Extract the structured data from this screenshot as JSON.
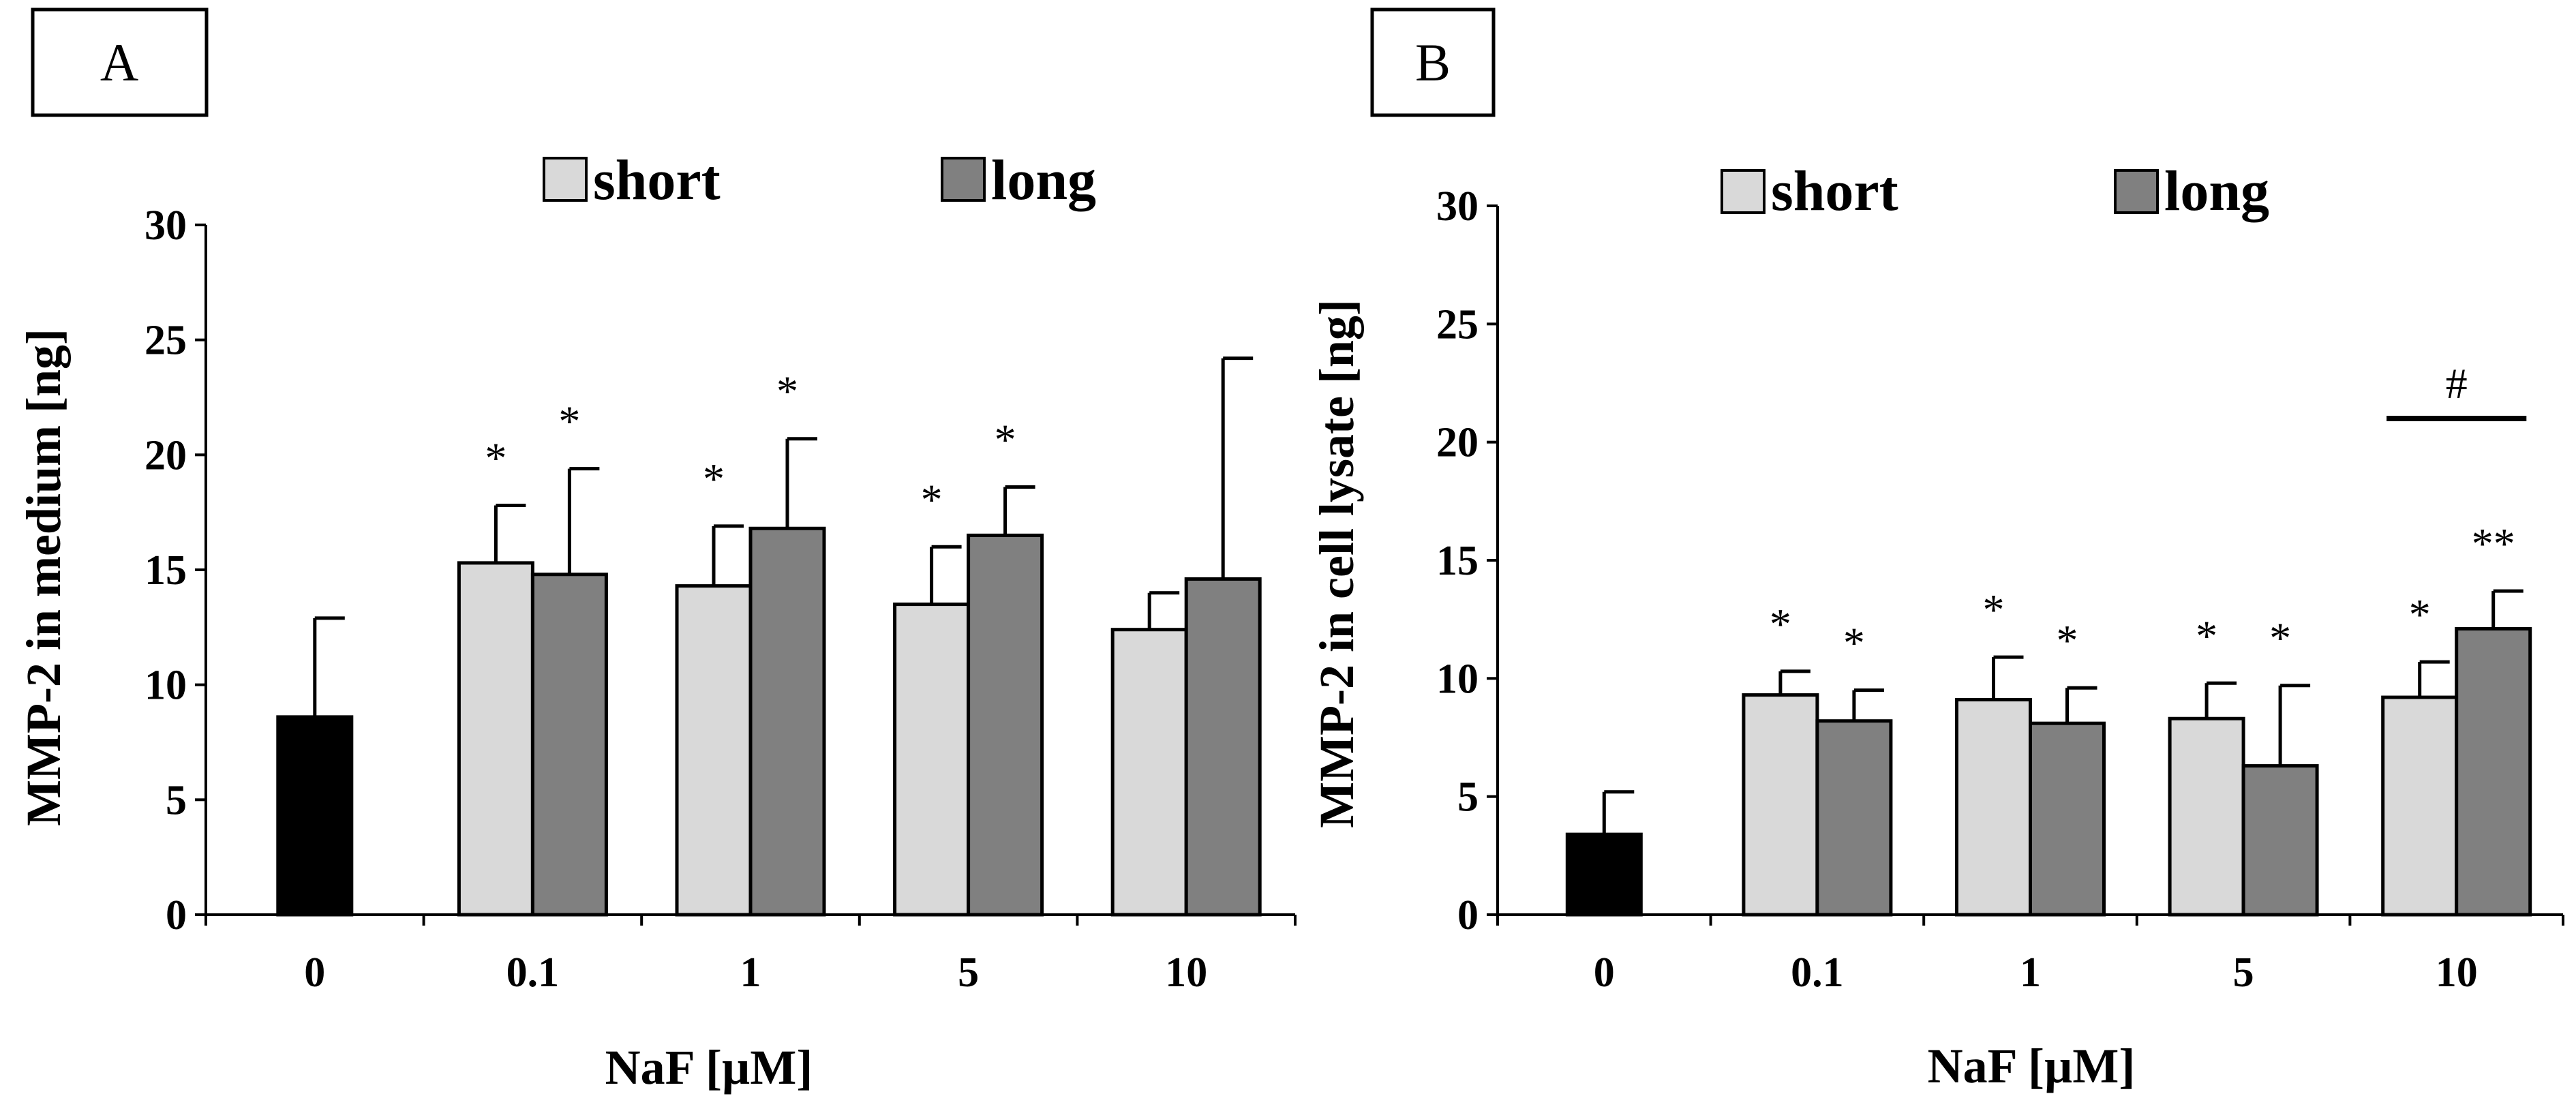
{
  "colors": {
    "control": "#000000",
    "short": "#d9d9d9",
    "long": "#808080"
  },
  "chart_data": [
    {
      "type": "bar",
      "panel_label": "A",
      "title": "",
      "xlabel": "NaF [µM]",
      "ylabel": "MMP-2 in medium [ng]",
      "ylim": [
        0,
        30
      ],
      "yticks": [
        "0",
        "5",
        "10",
        "15",
        "20",
        "25",
        "30"
      ],
      "categories": [
        "0",
        "0.1",
        "1",
        "5",
        "10"
      ],
      "legend": [
        "short",
        "long"
      ],
      "control": {
        "value": 8.6,
        "error": 4.3
      },
      "series": [
        {
          "name": "short",
          "values": [
            null,
            15.3,
            14.3,
            13.5,
            12.4
          ],
          "errors": [
            null,
            2.5,
            2.6,
            2.5,
            1.6
          ],
          "markers": [
            "",
            "*",
            "*",
            "*",
            ""
          ]
        },
        {
          "name": "long",
          "values": [
            null,
            14.8,
            16.8,
            16.5,
            14.6
          ],
          "errors": [
            null,
            4.6,
            3.9,
            2.1,
            9.6
          ],
          "markers": [
            "",
            "*",
            "*",
            "*",
            ""
          ]
        }
      ],
      "bracket": null
    },
    {
      "type": "bar",
      "panel_label": "B",
      "title": "",
      "xlabel": "NaF [µM]",
      "ylabel": "MMP-2 in cell lysate [ng]",
      "ylim": [
        0,
        30
      ],
      "yticks": [
        "0",
        "5",
        "10",
        "15",
        "20",
        "25",
        "30"
      ],
      "categories": [
        "0",
        "0.1",
        "1",
        "5",
        "10"
      ],
      "legend": [
        "short",
        "long"
      ],
      "control": {
        "value": 3.4,
        "error": 1.8
      },
      "series": [
        {
          "name": "short",
          "values": [
            null,
            9.3,
            9.1,
            8.3,
            9.2
          ],
          "errors": [
            null,
            1.0,
            1.8,
            1.5,
            1.5
          ],
          "markers": [
            "",
            "*",
            "*",
            "*",
            "*"
          ]
        },
        {
          "name": "long",
          "values": [
            null,
            8.2,
            8.1,
            6.3,
            12.1
          ],
          "errors": [
            null,
            1.3,
            1.5,
            3.4,
            1.6
          ],
          "markers": [
            "",
            "*",
            "*",
            "*",
            "**"
          ]
        }
      ],
      "bracket": {
        "category": "10",
        "label": "#",
        "y": 21
      }
    }
  ]
}
